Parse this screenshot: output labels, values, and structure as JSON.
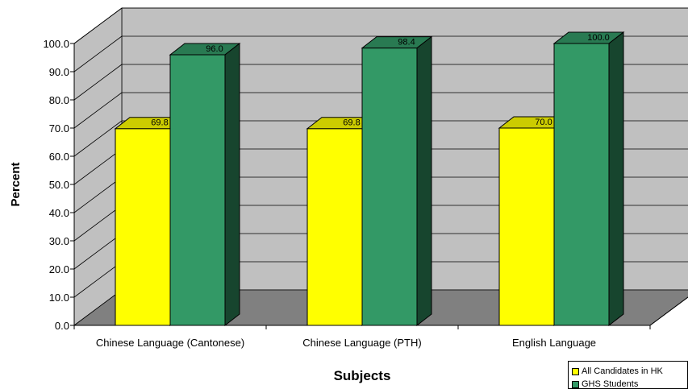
{
  "chart_data": {
    "type": "bar",
    "title": "",
    "xlabel": "Subjects",
    "ylabel": "Percent",
    "categories": [
      "Chinese Language (Cantonese)",
      "Chinese Language (PTH)",
      "English Language"
    ],
    "series": [
      {
        "name": "All Candidates in HK",
        "values": [
          69.8,
          69.8,
          70.0
        ],
        "color": "#ffff00"
      },
      {
        "name": "GHS Students",
        "values": [
          96.0,
          98.4,
          100.0
        ],
        "color": "#339966"
      }
    ],
    "data_labels": [
      [
        "69.8",
        "69.8",
        "70.0"
      ],
      [
        "96.0",
        "98.4",
        "100.0"
      ]
    ],
    "ylim": [
      0,
      100
    ],
    "y_ticks": [
      "0.0",
      "10.0",
      "20.0",
      "30.0",
      "40.0",
      "50.0",
      "60.0",
      "70.0",
      "80.0",
      "90.0",
      "100.0"
    ],
    "grid": true,
    "three_d": true,
    "legend_position": "bottom-right",
    "colors": {
      "wall": "#c0c0c0",
      "floor": "#808080",
      "gridline": "#000000"
    }
  }
}
